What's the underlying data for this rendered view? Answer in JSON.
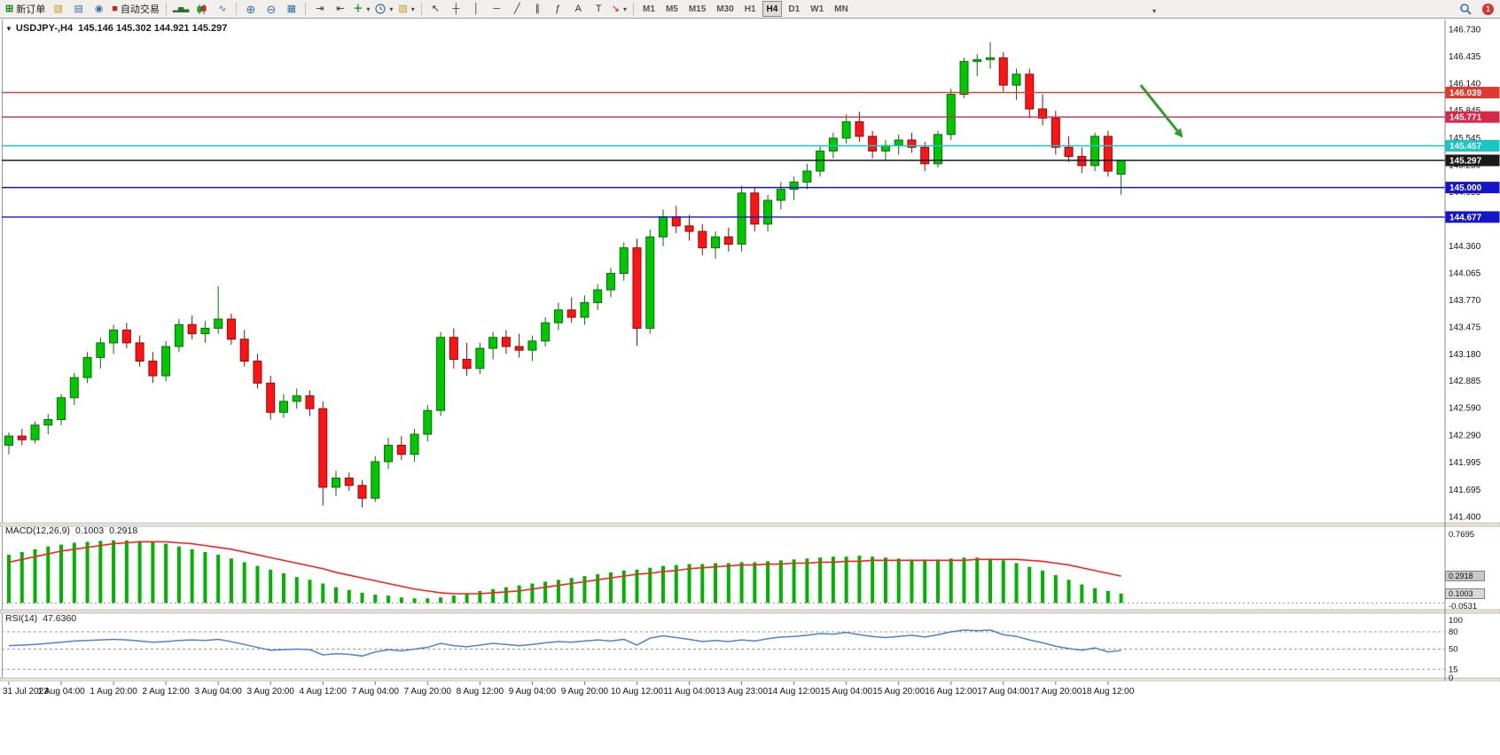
{
  "toolbar": {
    "new_order_label": "新订单",
    "autotrading_label": "自动交易",
    "icons": {
      "new_order": "⊞",
      "new_chart": "▧",
      "profiles": "▤",
      "community": "◉",
      "autotrading_stop": "■",
      "bar_chart": "▂▅▃",
      "line_chart": "∿",
      "zoom_in": "⊕",
      "zoom_out": "⊖",
      "tile_windows": "▦",
      "auto_scroll": "⇥",
      "chart_shift": "⇤",
      "indicators_plus": "＋",
      "dropdown": "▾",
      "cursor": "↖",
      "crosshair": "┼",
      "vline": "│",
      "hline": "─",
      "trendline": "╱",
      "channel": "∥",
      "fibonacci": "ƒ",
      "text": "A",
      "label": "T",
      "arrows": "↘",
      "overflow": "▾"
    },
    "timeframes": [
      "M1",
      "M5",
      "M15",
      "M30",
      "H1",
      "H4",
      "D1",
      "W1",
      "MN"
    ],
    "active_timeframe": "H4",
    "notification_count": "1"
  },
  "chart": {
    "header": {
      "collapse_glyph": "▼",
      "symbol": "USDJPY-,H4",
      "ohlc": "145.146 145.302 144.921 145.297"
    }
  },
  "chart_data": {
    "type": "candlestick",
    "symbol": "USDJPY-",
    "timeframe": "H4",
    "current_bar": {
      "open": 145.146,
      "high": 145.302,
      "low": 144.921,
      "close": 145.297
    },
    "price_axis_ticks": [
      "146.730",
      "146.435",
      "146.140",
      "145.845",
      "145.545",
      "145.250",
      "144.955",
      "144.660",
      "144.360",
      "144.065",
      "143.770",
      "143.475",
      "143.180",
      "142.885",
      "142.590",
      "142.290",
      "141.995",
      "141.695",
      "141.400"
    ],
    "price_levels": [
      {
        "price": 146.039,
        "label": "146.039",
        "color": "#e03a2e"
      },
      {
        "price": 145.771,
        "label": "145.771",
        "color": "#d6284a"
      },
      {
        "price": 145.457,
        "label": "145.457",
        "color": "#17c6c6"
      },
      {
        "price": 145.297,
        "label": "145.297",
        "color": "#1a1a1a"
      },
      {
        "price": 145.0,
        "label": "145.000",
        "color": "#1414cc"
      },
      {
        "price": 144.677,
        "label": "144.677",
        "color": "#1414cc"
      }
    ],
    "time_axis_labels": [
      "31 Jul 2023",
      "1 Aug 04:00",
      "1 Aug 20:00",
      "2 Aug 12:00",
      "3 Aug 04:00",
      "3 Aug 20:00",
      "4 Aug 12:00",
      "7 Aug 04:00",
      "7 Aug 20:00",
      "8 Aug 12:00",
      "9 Aug 04:00",
      "9 Aug 20:00",
      "10 Aug 12:00",
      "11 Aug 04:00",
      "13 Aug 23:00",
      "14 Aug 12:00",
      "15 Aug 04:00",
      "15 Aug 20:00",
      "16 Aug 12:00",
      "17 Aug 04:00",
      "17 Aug 20:00",
      "18 Aug 12:00"
    ],
    "candles": [
      [
        142.18,
        142.32,
        142.08,
        142.28
      ],
      [
        142.28,
        142.36,
        142.18,
        142.24
      ],
      [
        142.24,
        142.44,
        142.2,
        142.4
      ],
      [
        142.4,
        142.52,
        142.3,
        142.46
      ],
      [
        142.46,
        142.74,
        142.4,
        142.7
      ],
      [
        142.7,
        142.97,
        142.62,
        142.92
      ],
      [
        142.92,
        143.2,
        142.86,
        143.14
      ],
      [
        143.14,
        143.36,
        143.02,
        143.3
      ],
      [
        143.3,
        143.5,
        143.18,
        143.44
      ],
      [
        143.44,
        143.52,
        143.24,
        143.3
      ],
      [
        143.3,
        143.38,
        143.04,
        143.1
      ],
      [
        143.1,
        143.2,
        142.86,
        142.94
      ],
      [
        142.94,
        143.32,
        142.88,
        143.26
      ],
      [
        143.26,
        143.56,
        143.2,
        143.5
      ],
      [
        143.5,
        143.6,
        143.34,
        143.4
      ],
      [
        143.4,
        143.54,
        143.3,
        143.46
      ],
      [
        143.46,
        143.92,
        143.4,
        143.56
      ],
      [
        143.56,
        143.62,
        143.28,
        143.34
      ],
      [
        143.34,
        143.44,
        143.04,
        143.1
      ],
      [
        143.1,
        143.18,
        142.8,
        142.86
      ],
      [
        142.86,
        142.94,
        142.46,
        142.54
      ],
      [
        142.54,
        142.74,
        142.48,
        142.66
      ],
      [
        142.66,
        142.8,
        142.58,
        142.72
      ],
      [
        142.72,
        142.78,
        142.5,
        142.58
      ],
      [
        142.58,
        142.66,
        141.52,
        141.72
      ],
      [
        141.72,
        141.9,
        141.62,
        141.82
      ],
      [
        141.82,
        141.88,
        141.68,
        141.74
      ],
      [
        141.74,
        141.8,
        141.5,
        141.6
      ],
      [
        141.6,
        142.06,
        141.56,
        142.0
      ],
      [
        142.0,
        142.26,
        141.92,
        142.18
      ],
      [
        142.18,
        142.28,
        142.02,
        142.08
      ],
      [
        142.08,
        142.36,
        142.0,
        142.3
      ],
      [
        142.3,
        142.62,
        142.22,
        142.56
      ],
      [
        142.56,
        143.42,
        142.5,
        143.36
      ],
      [
        143.36,
        143.46,
        143.02,
        143.12
      ],
      [
        143.12,
        143.3,
        142.94,
        143.02
      ],
      [
        143.02,
        143.3,
        142.96,
        143.24
      ],
      [
        143.24,
        143.42,
        143.12,
        143.36
      ],
      [
        143.36,
        143.44,
        143.18,
        143.26
      ],
      [
        143.26,
        143.4,
        143.14,
        143.22
      ],
      [
        143.22,
        143.38,
        143.1,
        143.32
      ],
      [
        143.32,
        143.58,
        143.26,
        143.52
      ],
      [
        143.52,
        143.74,
        143.44,
        143.66
      ],
      [
        143.66,
        143.8,
        143.52,
        143.58
      ],
      [
        143.58,
        143.82,
        143.5,
        143.74
      ],
      [
        143.74,
        143.94,
        143.66,
        143.88
      ],
      [
        143.88,
        144.12,
        143.8,
        144.06
      ],
      [
        144.06,
        144.4,
        143.98,
        144.34
      ],
      [
        144.34,
        144.44,
        143.27,
        143.46
      ],
      [
        143.46,
        144.54,
        143.4,
        144.46
      ],
      [
        144.46,
        144.76,
        144.36,
        144.68
      ],
      [
        144.68,
        144.8,
        144.5,
        144.58
      ],
      [
        144.58,
        144.7,
        144.42,
        144.52
      ],
      [
        144.52,
        144.6,
        144.26,
        144.34
      ],
      [
        144.34,
        144.52,
        144.22,
        144.46
      ],
      [
        144.46,
        144.56,
        144.3,
        144.38
      ],
      [
        144.38,
        145.02,
        144.3,
        144.94
      ],
      [
        144.94,
        145.0,
        144.52,
        144.6
      ],
      [
        144.6,
        144.92,
        144.52,
        144.86
      ],
      [
        144.86,
        145.06,
        144.76,
        144.98
      ],
      [
        144.98,
        145.12,
        144.86,
        145.06
      ],
      [
        145.06,
        145.26,
        144.98,
        145.18
      ],
      [
        145.18,
        145.46,
        145.12,
        145.4
      ],
      [
        145.4,
        145.6,
        145.32,
        145.54
      ],
      [
        145.54,
        145.8,
        145.48,
        145.72
      ],
      [
        145.72,
        145.83,
        145.5,
        145.56
      ],
      [
        145.56,
        145.62,
        145.32,
        145.4
      ],
      [
        145.4,
        145.52,
        145.3,
        145.46
      ],
      [
        145.46,
        145.58,
        145.36,
        145.52
      ],
      [
        145.52,
        145.6,
        145.38,
        145.44
      ],
      [
        145.44,
        145.5,
        145.18,
        145.26
      ],
      [
        145.26,
        145.62,
        145.22,
        145.58
      ],
      [
        145.58,
        146.08,
        145.52,
        146.02
      ],
      [
        146.02,
        146.42,
        145.98,
        146.38
      ],
      [
        146.38,
        146.46,
        146.22,
        146.4
      ],
      [
        146.4,
        146.59,
        146.3,
        146.42
      ],
      [
        146.42,
        146.48,
        146.05,
        146.12
      ],
      [
        146.12,
        146.3,
        145.96,
        146.24
      ],
      [
        146.24,
        146.3,
        145.76,
        145.86
      ],
      [
        145.86,
        146.02,
        145.68,
        145.76
      ],
      [
        145.76,
        145.84,
        145.36,
        145.44
      ],
      [
        145.44,
        145.56,
        145.28,
        145.34
      ],
      [
        145.34,
        145.44,
        145.16,
        145.24
      ],
      [
        145.24,
        145.6,
        145.18,
        145.56
      ],
      [
        145.56,
        145.62,
        145.12,
        145.18
      ],
      [
        145.146,
        145.302,
        144.921,
        145.297
      ]
    ],
    "macd": {
      "label": "MACD(12,26,9)",
      "main_value": "0.1003",
      "signal_value": "0.2918",
      "axis_max": "0.7695",
      "axis_min": "-0.0531",
      "histogram": [
        0.52,
        0.55,
        0.58,
        0.61,
        0.63,
        0.65,
        0.66,
        0.67,
        0.675,
        0.675,
        0.67,
        0.66,
        0.64,
        0.61,
        0.58,
        0.55,
        0.52,
        0.48,
        0.44,
        0.4,
        0.36,
        0.32,
        0.28,
        0.25,
        0.21,
        0.17,
        0.14,
        0.11,
        0.09,
        0.08,
        0.06,
        0.05,
        0.05,
        0.06,
        0.08,
        0.1,
        0.13,
        0.15,
        0.17,
        0.19,
        0.21,
        0.23,
        0.25,
        0.27,
        0.29,
        0.31,
        0.33,
        0.35,
        0.36,
        0.38,
        0.4,
        0.41,
        0.42,
        0.42,
        0.43,
        0.43,
        0.44,
        0.44,
        0.45,
        0.46,
        0.47,
        0.48,
        0.49,
        0.5,
        0.5,
        0.51,
        0.5,
        0.49,
        0.48,
        0.47,
        0.47,
        0.47,
        0.48,
        0.49,
        0.49,
        0.48,
        0.46,
        0.43,
        0.39,
        0.35,
        0.3,
        0.25,
        0.2,
        0.16,
        0.13,
        0.1
      ],
      "signal": [
        0.44,
        0.47,
        0.5,
        0.53,
        0.56,
        0.58,
        0.6,
        0.62,
        0.64,
        0.65,
        0.66,
        0.66,
        0.66,
        0.65,
        0.64,
        0.62,
        0.6,
        0.58,
        0.55,
        0.52,
        0.49,
        0.46,
        0.43,
        0.4,
        0.37,
        0.33,
        0.3,
        0.27,
        0.24,
        0.21,
        0.18,
        0.15,
        0.13,
        0.11,
        0.1,
        0.1,
        0.1,
        0.11,
        0.12,
        0.13,
        0.15,
        0.17,
        0.19,
        0.21,
        0.23,
        0.25,
        0.27,
        0.29,
        0.31,
        0.32,
        0.34,
        0.35,
        0.37,
        0.38,
        0.39,
        0.4,
        0.41,
        0.41,
        0.42,
        0.42,
        0.43,
        0.43,
        0.44,
        0.44,
        0.45,
        0.45,
        0.46,
        0.46,
        0.46,
        0.46,
        0.46,
        0.46,
        0.46,
        0.46,
        0.47,
        0.47,
        0.47,
        0.47,
        0.46,
        0.45,
        0.43,
        0.41,
        0.38,
        0.35,
        0.32,
        0.29
      ]
    },
    "rsi": {
      "label": "RSI(14)",
      "value": "47.6360",
      "levels": [
        80,
        50,
        15
      ],
      "axis_ticks": [
        "100",
        "80",
        "50",
        "15",
        "0"
      ],
      "values": [
        56,
        57,
        58,
        60,
        62,
        64,
        65,
        66,
        67,
        66,
        64,
        62,
        63,
        65,
        66,
        65,
        67,
        63,
        58,
        53,
        48,
        49,
        50,
        49,
        40,
        42,
        41,
        38,
        45,
        49,
        47,
        50,
        53,
        60,
        56,
        54,
        57,
        60,
        58,
        56,
        58,
        61,
        63,
        62,
        64,
        66,
        64,
        67,
        57,
        69,
        73,
        70,
        67,
        63,
        65,
        63,
        66,
        64,
        68,
        71,
        72,
        74,
        77,
        76,
        79,
        75,
        72,
        70,
        72,
        74,
        71,
        75,
        80,
        83,
        82,
        83,
        75,
        72,
        66,
        61,
        55,
        51,
        48,
        52,
        45,
        47.6
      ]
    },
    "annotation_arrow": {
      "color": "#2f9e2f",
      "from": {
        "bar": 86.5,
        "price": 146.12
      },
      "to": {
        "bar": 89.3,
        "price": 145.62
      }
    }
  }
}
